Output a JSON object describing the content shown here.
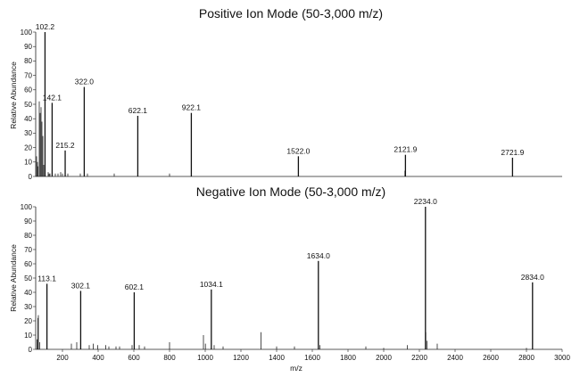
{
  "chart_data": [
    {
      "type": "spectrum",
      "title": "Positive Ion Mode (50-3,000 m/z)",
      "xlabel": "",
      "ylabel": "Relative Abundance",
      "xlim": [
        50,
        3000
      ],
      "ylim": [
        0,
        100
      ],
      "yticks": [
        0,
        10,
        20,
        30,
        40,
        50,
        60,
        70,
        80,
        90,
        100
      ],
      "xticks": [],
      "grid": false,
      "peaks": [
        {
          "x": 102.2,
          "y": 100,
          "label": "102.2"
        },
        {
          "x": 142.1,
          "y": 51,
          "label": "142.1"
        },
        {
          "x": 215.2,
          "y": 18,
          "label": "215.2"
        },
        {
          "x": 322.0,
          "y": 62,
          "label": "322.0"
        },
        {
          "x": 622.1,
          "y": 42,
          "label": "622.1"
        },
        {
          "x": 922.1,
          "y": 44,
          "label": "922.1"
        },
        {
          "x": 1522.0,
          "y": 14,
          "label": "1522.0"
        },
        {
          "x": 2121.9,
          "y": 15,
          "label": "2121.9"
        },
        {
          "x": 2721.9,
          "y": 13,
          "label": "2721.9"
        }
      ],
      "minor_peaks": [
        {
          "x": 55,
          "y": 14
        },
        {
          "x": 60,
          "y": 10
        },
        {
          "x": 63,
          "y": 7
        },
        {
          "x": 70,
          "y": 52
        },
        {
          "x": 75,
          "y": 44
        },
        {
          "x": 80,
          "y": 48
        },
        {
          "x": 85,
          "y": 38
        },
        {
          "x": 90,
          "y": 28
        },
        {
          "x": 95,
          "y": 8
        },
        {
          "x": 120,
          "y": 3
        },
        {
          "x": 125,
          "y": 2
        },
        {
          "x": 130,
          "y": 2
        },
        {
          "x": 160,
          "y": 2
        },
        {
          "x": 175,
          "y": 2
        },
        {
          "x": 190,
          "y": 3
        },
        {
          "x": 200,
          "y": 2
        },
        {
          "x": 230,
          "y": 2
        },
        {
          "x": 300,
          "y": 2
        },
        {
          "x": 340,
          "y": 2
        },
        {
          "x": 490,
          "y": 2
        },
        {
          "x": 800,
          "y": 2
        },
        {
          "x": 2119,
          "y": 4
        }
      ]
    },
    {
      "type": "spectrum",
      "title": "Negative Ion Mode (50-3,000 m/z)",
      "xlabel": "m/z",
      "ylabel": "Relative Abundance",
      "xlim": [
        50,
        3000
      ],
      "ylim": [
        0,
        100
      ],
      "yticks": [
        0,
        10,
        20,
        30,
        40,
        50,
        60,
        70,
        80,
        90,
        100
      ],
      "xticks": [
        200,
        400,
        600,
        800,
        1000,
        1200,
        1400,
        1600,
        1800,
        2000,
        2200,
        2400,
        2600,
        2800,
        3000
      ],
      "grid": false,
      "peaks": [
        {
          "x": 113.1,
          "y": 46,
          "label": "113.1"
        },
        {
          "x": 302.1,
          "y": 41,
          "label": "302.1"
        },
        {
          "x": 602.1,
          "y": 40,
          "label": "602.1"
        },
        {
          "x": 1034.1,
          "y": 42,
          "label": "1034.1"
        },
        {
          "x": 1634.0,
          "y": 62,
          "label": "1634.0"
        },
        {
          "x": 2234.0,
          "y": 100,
          "label": "2234.0"
        },
        {
          "x": 2834.0,
          "y": 47,
          "label": "2834.0"
        }
      ],
      "minor_peaks": [
        {
          "x": 58,
          "y": 7
        },
        {
          "x": 62,
          "y": 22
        },
        {
          "x": 65,
          "y": 24
        },
        {
          "x": 72,
          "y": 5
        },
        {
          "x": 250,
          "y": 4
        },
        {
          "x": 280,
          "y": 5
        },
        {
          "x": 350,
          "y": 3
        },
        {
          "x": 372,
          "y": 4
        },
        {
          "x": 398,
          "y": 3
        },
        {
          "x": 442,
          "y": 3
        },
        {
          "x": 460,
          "y": 2
        },
        {
          "x": 500,
          "y": 2
        },
        {
          "x": 520,
          "y": 2
        },
        {
          "x": 590,
          "y": 3
        },
        {
          "x": 630,
          "y": 3
        },
        {
          "x": 660,
          "y": 2
        },
        {
          "x": 800,
          "y": 5
        },
        {
          "x": 990,
          "y": 10
        },
        {
          "x": 1001,
          "y": 4
        },
        {
          "x": 1050,
          "y": 3
        },
        {
          "x": 1100,
          "y": 2
        },
        {
          "x": 1312,
          "y": 12
        },
        {
          "x": 1400,
          "y": 2
        },
        {
          "x": 1500,
          "y": 2
        },
        {
          "x": 1643,
          "y": 3
        },
        {
          "x": 1900,
          "y": 2
        },
        {
          "x": 2000,
          "y": 1
        },
        {
          "x": 2132,
          "y": 3
        },
        {
          "x": 2236,
          "y": 12
        },
        {
          "x": 2242,
          "y": 6
        },
        {
          "x": 2300,
          "y": 4
        },
        {
          "x": 2800,
          "y": 1
        }
      ]
    }
  ]
}
